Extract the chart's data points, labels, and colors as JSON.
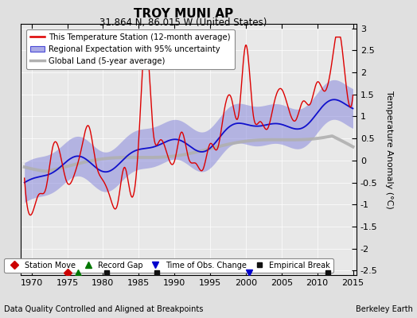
{
  "title": "TROY MUNI AP",
  "subtitle": "31.864 N, 86.015 W (United States)",
  "ylabel": "Temperature Anomaly (°C)",
  "xlabel_note": "Data Quality Controlled and Aligned at Breakpoints",
  "credit": "Berkeley Earth",
  "ylim": [
    -2.6,
    3.1
  ],
  "xlim": [
    1968.5,
    2015.5
  ],
  "yticks": [
    -2.5,
    -2,
    -1.5,
    -1,
    -0.5,
    0,
    0.5,
    1,
    1.5,
    2,
    2.5,
    3
  ],
  "xticks": [
    1970,
    1975,
    1980,
    1985,
    1990,
    1995,
    2000,
    2005,
    2010,
    2015
  ],
  "bg_color": "#e0e0e0",
  "plot_bg_color": "#e8e8e8",
  "red_line_color": "#dd0000",
  "blue_line_color": "#1111cc",
  "blue_fill_color": "#8888dd",
  "gray_line_color": "#b0b0b0",
  "station_move_color": "#cc0000",
  "record_gap_color": "#007700",
  "tobs_change_color": "#0000cc",
  "emp_break_color": "#111111",
  "legend_items": [
    "This Temperature Station (12-month average)",
    "Regional Expectation with 95% uncertainty",
    "Global Land (5-year average)"
  ],
  "marker_items": [
    "Station Move",
    "Record Gap",
    "Time of Obs. Change",
    "Empirical Break"
  ],
  "station_moves": [
    1975.0
  ],
  "record_gaps": [
    1976.5
  ],
  "tobs_changes": [
    2000.5
  ],
  "emp_breaks": [
    1980.5,
    1987.5,
    2011.5
  ]
}
